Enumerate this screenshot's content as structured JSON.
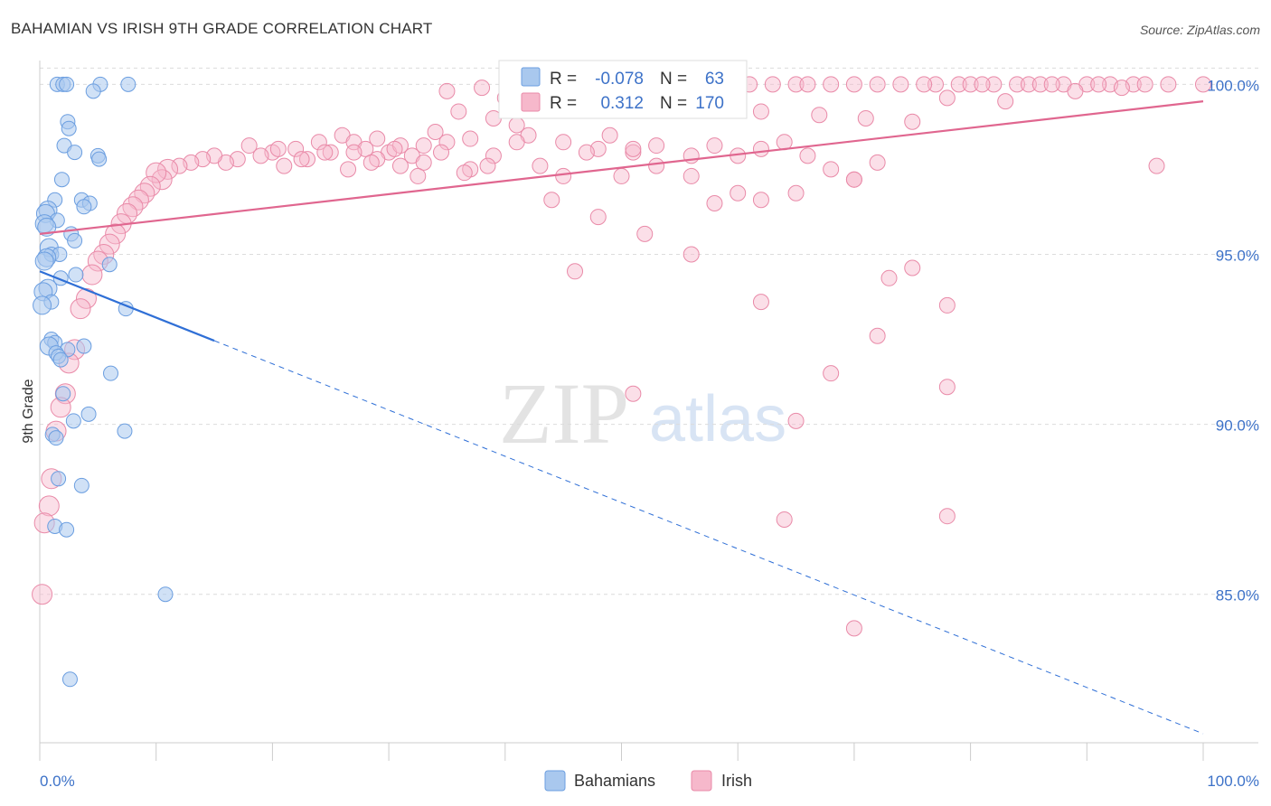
{
  "title": "BAHAMIAN VS IRISH 9TH GRADE CORRELATION CHART",
  "source": "Source: ZipAtlas.com",
  "watermark": {
    "zip": "ZIP",
    "atlas": "atlas"
  },
  "legend": {
    "r_label": "R =",
    "n_label": "N =",
    "entries": [
      {
        "name": "Bahamians",
        "r": "-0.078",
        "n": "63",
        "fill": "#a9c8ee",
        "stroke": "#6b9ee0"
      },
      {
        "name": "Irish",
        "r": "0.312",
        "n": "170",
        "fill": "#f6b8cb",
        "stroke": "#e98aa8"
      }
    ]
  },
  "chart_data": {
    "type": "scatter",
    "title": "BAHAMIAN VS IRISH 9TH GRADE CORRELATION CHART",
    "xlabel": "",
    "ylabel": "9th Grade",
    "xlim": [
      0,
      100
    ],
    "ylim": [
      80.9,
      100.7
    ],
    "x_tick_labels": [
      {
        "value": 0,
        "label": "0.0%"
      },
      {
        "value": 100,
        "label": "100.0%"
      }
    ],
    "y_tick_labels": [
      {
        "value": 100,
        "label": "100.0%"
      },
      {
        "value": 95,
        "label": "95.0%"
      },
      {
        "value": 90,
        "label": "90.0%"
      },
      {
        "value": 85,
        "label": "85.0%"
      }
    ],
    "colors": {
      "bahamians": "#6b9ee0",
      "bahamians_line": "#2f6fd6",
      "irish": "#e98aa8",
      "irish_line": "#e0668f",
      "axis_text": "#3d72c8"
    },
    "series": [
      {
        "name": "Bahamians",
        "r": -0.078,
        "n": 63,
        "trend": {
          "x0": 0,
          "y0": 94.5,
          "x1": 100,
          "y1": 80.9,
          "solid_until": 15
        },
        "points": [
          [
            1.5,
            100
          ],
          [
            2.0,
            100
          ],
          [
            2.3,
            100
          ],
          [
            5.2,
            100
          ],
          [
            7.6,
            100
          ],
          [
            4.6,
            99.8
          ],
          [
            2.4,
            98.9
          ],
          [
            2.5,
            98.7
          ],
          [
            2.1,
            98.2
          ],
          [
            3.0,
            98.0
          ],
          [
            5.0,
            97.9
          ],
          [
            5.1,
            97.8
          ],
          [
            1.9,
            97.2
          ],
          [
            1.3,
            96.6
          ],
          [
            3.6,
            96.6
          ],
          [
            4.3,
            96.5
          ],
          [
            3.8,
            96.4
          ],
          [
            0.7,
            96.3
          ],
          [
            0.5,
            96.2
          ],
          [
            1.5,
            96.0
          ],
          [
            0.4,
            95.9
          ],
          [
            0.6,
            95.8
          ],
          [
            2.7,
            95.6
          ],
          [
            3.0,
            95.4
          ],
          [
            0.8,
            95.2
          ],
          [
            1.0,
            95.0
          ],
          [
            1.7,
            95.0
          ],
          [
            0.6,
            94.9
          ],
          [
            0.4,
            94.8
          ],
          [
            6.0,
            94.7
          ],
          [
            3.1,
            94.4
          ],
          [
            1.8,
            94.3
          ],
          [
            0.7,
            94.0
          ],
          [
            0.3,
            93.9
          ],
          [
            1.0,
            93.6
          ],
          [
            0.2,
            93.5
          ],
          [
            7.4,
            93.4
          ],
          [
            1.0,
            92.5
          ],
          [
            1.3,
            92.4
          ],
          [
            0.8,
            92.3
          ],
          [
            2.4,
            92.2
          ],
          [
            3.8,
            92.3
          ],
          [
            1.4,
            92.1
          ],
          [
            1.6,
            92.0
          ],
          [
            1.8,
            91.9
          ],
          [
            6.1,
            91.5
          ],
          [
            2.0,
            90.9
          ],
          [
            4.2,
            90.3
          ],
          [
            2.9,
            90.1
          ],
          [
            7.3,
            89.8
          ],
          [
            1.1,
            89.7
          ],
          [
            1.4,
            89.6
          ],
          [
            1.6,
            88.4
          ],
          [
            3.6,
            88.2
          ],
          [
            1.3,
            87.0
          ],
          [
            2.3,
            86.9
          ],
          [
            10.8,
            85.0
          ],
          [
            2.6,
            82.5
          ]
        ]
      },
      {
        "name": "Irish",
        "r": 0.312,
        "n": 170,
        "trend": {
          "x0": 0,
          "y0": 95.6,
          "x1": 100,
          "y1": 99.5,
          "solid_until": 100
        },
        "points": [
          [
            54,
            100
          ],
          [
            56,
            100
          ],
          [
            60,
            100
          ],
          [
            63,
            100
          ],
          [
            65,
            100
          ],
          [
            68,
            100
          ],
          [
            70,
            100
          ],
          [
            72,
            100
          ],
          [
            74,
            100
          ],
          [
            77,
            100
          ],
          [
            79,
            100
          ],
          [
            80,
            100
          ],
          [
            82,
            100
          ],
          [
            84,
            100
          ],
          [
            85,
            100
          ],
          [
            86,
            100
          ],
          [
            88,
            100
          ],
          [
            90,
            100
          ],
          [
            92,
            100
          ],
          [
            94,
            100
          ],
          [
            97,
            100
          ],
          [
            100,
            100
          ],
          [
            58,
            100
          ],
          [
            61,
            100
          ],
          [
            66,
            100
          ],
          [
            76,
            100
          ],
          [
            81,
            100
          ],
          [
            87,
            100
          ],
          [
            91,
            100
          ],
          [
            95,
            100
          ],
          [
            47,
            99.9
          ],
          [
            50,
            99.9
          ],
          [
            52,
            99.9
          ],
          [
            38,
            99.9
          ],
          [
            44,
            99.8
          ],
          [
            46,
            99.7
          ],
          [
            35,
            99.8
          ],
          [
            40,
            99.6
          ],
          [
            43,
            99.7
          ],
          [
            49,
            99.5
          ],
          [
            55,
            99.4
          ],
          [
            59,
            99.3
          ],
          [
            62,
            99.2
          ],
          [
            67,
            99.1
          ],
          [
            71,
            99.0
          ],
          [
            75,
            98.9
          ],
          [
            78,
            99.6
          ],
          [
            83,
            99.5
          ],
          [
            89,
            99.8
          ],
          [
            93,
            99.9
          ],
          [
            36,
            99.2
          ],
          [
            39,
            99.0
          ],
          [
            41,
            98.8
          ],
          [
            34,
            98.6
          ],
          [
            37,
            98.4
          ],
          [
            42,
            98.5
          ],
          [
            45,
            98.3
          ],
          [
            48,
            98.1
          ],
          [
            51,
            98.0
          ],
          [
            53,
            98.2
          ],
          [
            26,
            98.5
          ],
          [
            27,
            98.3
          ],
          [
            28,
            98.1
          ],
          [
            29,
            98.4
          ],
          [
            30,
            98.0
          ],
          [
            31,
            98.2
          ],
          [
            32,
            97.9
          ],
          [
            33,
            97.7
          ],
          [
            24,
            98.3
          ],
          [
            25,
            98.0
          ],
          [
            22,
            98.1
          ],
          [
            23,
            97.8
          ],
          [
            21,
            97.6
          ],
          [
            20,
            98.0
          ],
          [
            19,
            97.9
          ],
          [
            18,
            98.2
          ],
          [
            17,
            97.8
          ],
          [
            16,
            97.7
          ],
          [
            15,
            97.9
          ],
          [
            14,
            97.8
          ],
          [
            13,
            97.7
          ],
          [
            12,
            97.6
          ],
          [
            11,
            97.5
          ],
          [
            10.5,
            97.2
          ],
          [
            10,
            97.4
          ],
          [
            9.5,
            97.0
          ],
          [
            9,
            96.8
          ],
          [
            8.5,
            96.6
          ],
          [
            8,
            96.4
          ],
          [
            7.5,
            96.2
          ],
          [
            7,
            95.9
          ],
          [
            6.5,
            95.6
          ],
          [
            6,
            95.3
          ],
          [
            5.5,
            95.0
          ],
          [
            5,
            94.8
          ],
          [
            4.5,
            94.4
          ],
          [
            4,
            93.7
          ],
          [
            3.5,
            93.4
          ],
          [
            3,
            92.2
          ],
          [
            2.5,
            91.8
          ],
          [
            2.2,
            90.9
          ],
          [
            1.8,
            90.5
          ],
          [
            1.4,
            89.8
          ],
          [
            1.0,
            88.4
          ],
          [
            0.8,
            87.6
          ],
          [
            0.4,
            87.1
          ],
          [
            0.2,
            85.0
          ],
          [
            27,
            98.0
          ],
          [
            29,
            97.8
          ],
          [
            31,
            97.6
          ],
          [
            33,
            98.2
          ],
          [
            35,
            98.3
          ],
          [
            37,
            97.5
          ],
          [
            39,
            97.9
          ],
          [
            41,
            98.3
          ],
          [
            43,
            97.6
          ],
          [
            45,
            97.3
          ],
          [
            47,
            98.0
          ],
          [
            49,
            98.5
          ],
          [
            51,
            98.1
          ],
          [
            53,
            97.6
          ],
          [
            56,
            97.9
          ],
          [
            58,
            98.2
          ],
          [
            60,
            97.9
          ],
          [
            62,
            98.1
          ],
          [
            64,
            98.3
          ],
          [
            66,
            97.9
          ],
          [
            68,
            97.5
          ],
          [
            70,
            97.2
          ],
          [
            72,
            97.7
          ],
          [
            20.5,
            98.1
          ],
          [
            22.5,
            97.8
          ],
          [
            24.5,
            98.0
          ],
          [
            26.5,
            97.5
          ],
          [
            28.5,
            97.7
          ],
          [
            30.5,
            98.1
          ],
          [
            32.5,
            97.3
          ],
          [
            34.5,
            98.0
          ],
          [
            36.5,
            97.4
          ],
          [
            38.5,
            97.6
          ],
          [
            50,
            97.3
          ],
          [
            56,
            97.3
          ],
          [
            58,
            96.5
          ],
          [
            60,
            96.8
          ],
          [
            62,
            96.6
          ],
          [
            65,
            96.8
          ],
          [
            44,
            96.6
          ],
          [
            48,
            96.1
          ],
          [
            52,
            95.6
          ],
          [
            56,
            95.0
          ],
          [
            70,
            97.2
          ],
          [
            73,
            94.3
          ],
          [
            75,
            94.6
          ],
          [
            78,
            93.5
          ],
          [
            46,
            94.5
          ],
          [
            62,
            93.6
          ],
          [
            72,
            92.6
          ],
          [
            68,
            91.5
          ],
          [
            78,
            91.1
          ],
          [
            51,
            90.9
          ],
          [
            65,
            90.1
          ],
          [
            64,
            87.2
          ],
          [
            78,
            87.3
          ],
          [
            70,
            84.0
          ],
          [
            96,
            97.6
          ]
        ]
      }
    ]
  }
}
